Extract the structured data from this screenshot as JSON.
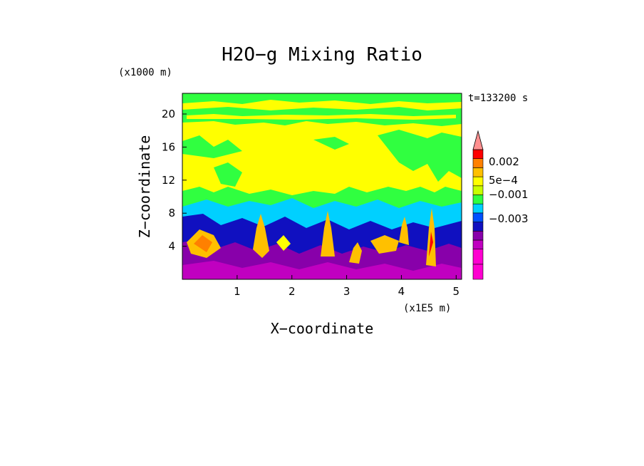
{
  "chart_data": {
    "type": "heatmap",
    "title": "H2O−g Mixing Ratio",
    "xlabel": "X−coordinate",
    "ylabel": "Z−coordinate",
    "x_unit": "(x1E5 m)",
    "y_unit": "(x1000 m)",
    "time_label": "t=133200 s",
    "x_ticks": [
      1,
      2,
      3,
      4,
      5
    ],
    "y_ticks": [
      4,
      8,
      12,
      16,
      20
    ],
    "xlim": [
      0,
      5.1
    ],
    "ylim": [
      0,
      22.5
    ],
    "grid": false,
    "colorbar": {
      "position": "right",
      "colors": [
        "#ff00d0",
        "#ff00d0",
        "#c000c0",
        "#8800aa",
        "#1010c0",
        "#0050ff",
        "#00d0ff",
        "#30ff40",
        "#c8ff00",
        "#ffff00",
        "#ffc000",
        "#ff8000",
        "#ff0000",
        "#ff9090"
      ],
      "tick_labels": [
        "0.002",
        "5e−4",
        "−0.001",
        "−0.003"
      ]
    },
    "regions": {
      "background": "#30ff40",
      "upper_band": "#ffff00",
      "mid_cyan": "#00d0ff",
      "mid_blue": "#1010c0",
      "lower_purple": "#8800aa",
      "plumes": "#ffa000"
    }
  }
}
